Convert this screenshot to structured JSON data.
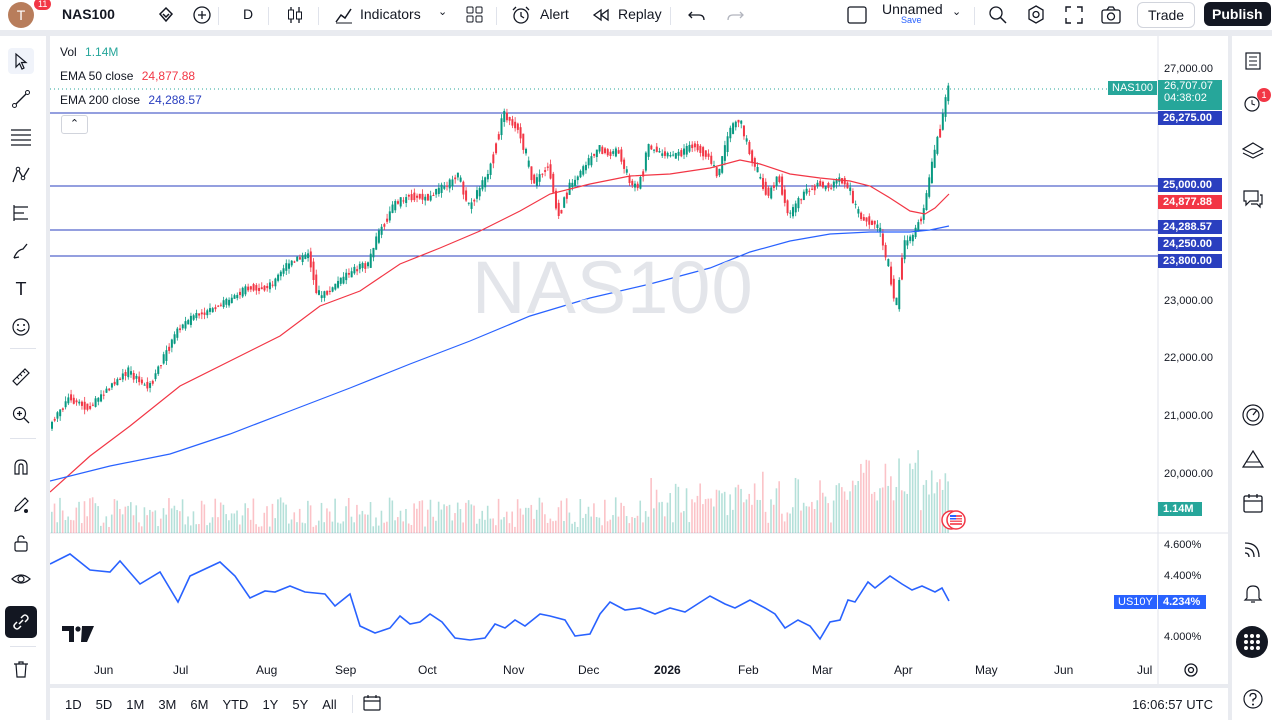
{
  "topbar": {
    "avatar_letter": "T",
    "avatar_badge": "11",
    "symbol": "NAS100",
    "interval": "D",
    "indicators": "Indicators",
    "alert": "Alert",
    "replay": "Replay",
    "layout_name": "Unnamed",
    "layout_sub": "Save",
    "trade": "Trade",
    "publish": "Publish"
  },
  "legend": {
    "vol_label": "Vol",
    "vol_value": "1.14M",
    "ema50_label": "EMA 50 close",
    "ema50_value": "24,877.88",
    "ema200_label": "EMA 200 close",
    "ema200_value": "24,288.57"
  },
  "watermark": "NAS100",
  "price_axis": [
    "27,000.00",
    "23,000.00",
    "22,000.00",
    "21,000.00",
    "20,000.00"
  ],
  "price_labels": {
    "symbol_tag": "NAS100",
    "last": "26,707.07",
    "countdown": "04:38:02",
    "line1": "26,275.00",
    "line2": "25,000.00",
    "ema50": "24,877.88",
    "ema200": "24,288.57",
    "line3": "24,250.00",
    "line4": "23,800.00",
    "volume": "1.14M"
  },
  "sub_axis": [
    "4.600%",
    "4.400%",
    "4.000%"
  ],
  "sub_labels": {
    "symbol": "US10Y",
    "value": "4.234%"
  },
  "time_axis": [
    "Jun",
    "Jul",
    "Aug",
    "Sep",
    "Oct",
    "Nov",
    "Dec",
    "2026",
    "Feb",
    "Mar",
    "Apr",
    "May",
    "Jun",
    "Jul"
  ],
  "bottombar": {
    "ranges": [
      "1D",
      "5D",
      "1M",
      "3M",
      "6M",
      "YTD",
      "1Y",
      "5Y",
      "All"
    ],
    "clock": "16:06:57 UTC"
  },
  "right_badge": "1",
  "colors": {
    "up": "#089981",
    "down": "#f23645",
    "ema50": "#f23645",
    "ema200": "#2962ff",
    "hline": "#2a3fbf",
    "us10y": "#2962ff"
  }
}
